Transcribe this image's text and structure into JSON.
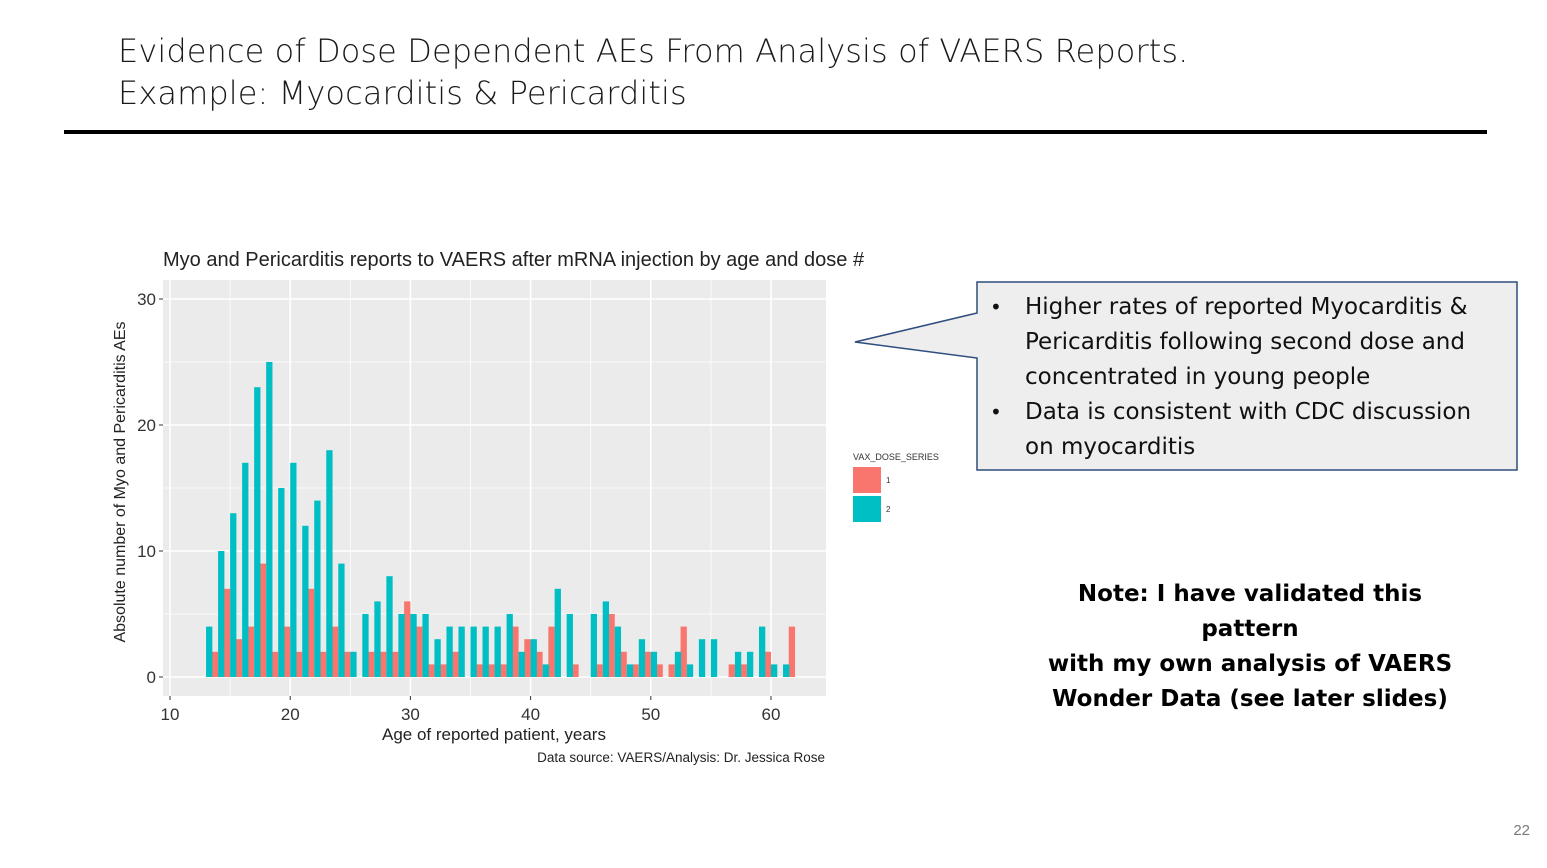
{
  "slide": {
    "title_line1": "Evidence of Dose Dependent AEs From Analysis of VAERS Reports.",
    "title_line2": "Example: Myocarditis & Pericarditis",
    "page_number": "22"
  },
  "callout": {
    "bullets": [
      "Higher rates of reported Myocarditis & Pericarditis following second dose and concentrated in young people",
      "Data is consistent with CDC discussion on myocarditis"
    ],
    "fill": "#eeeeee",
    "border": "#2f4d7e"
  },
  "note": {
    "lines": [
      "Note: I have validated this pattern",
      "with my own analysis of VAERS",
      "Wonder Data (see later slides)"
    ]
  },
  "chart_data": {
    "type": "bar",
    "title": "Myo and Pericarditis reports to VAERS after mRNA injection by age and dose #",
    "xlabel": "Age of reported patient, years",
    "ylabel": "Absolute number of Myo and Pericarditis AEs",
    "caption": "Data source: VAERS/Analysis: Dr. Jessica Rose",
    "xlim": [
      9.5,
      64.5
    ],
    "ylim": [
      -1.5,
      31
    ],
    "xticks": [
      10,
      20,
      30,
      40,
      50,
      60
    ],
    "yticks": [
      0,
      10,
      20,
      30
    ],
    "grid": true,
    "panel_background": "#ebebeb",
    "legend": {
      "title": "VAX_DOSE_SERIES",
      "position": "right"
    },
    "series": [
      {
        "name": "1",
        "color": "#f8766d",
        "points": [
          [
            14,
            2
          ],
          [
            15,
            7
          ],
          [
            16,
            3
          ],
          [
            17,
            4
          ],
          [
            18,
            9
          ],
          [
            19,
            2
          ],
          [
            20,
            4
          ],
          [
            21,
            2
          ],
          [
            22,
            7
          ],
          [
            23,
            2
          ],
          [
            24,
            4
          ],
          [
            25,
            2
          ],
          [
            27,
            2
          ],
          [
            28,
            2
          ],
          [
            29,
            2
          ],
          [
            30,
            6
          ],
          [
            31,
            4
          ],
          [
            32,
            1
          ],
          [
            33,
            1
          ],
          [
            34,
            2
          ],
          [
            36,
            1
          ],
          [
            37,
            1
          ],
          [
            38,
            1
          ],
          [
            39,
            4
          ],
          [
            40,
            3
          ],
          [
            41,
            2
          ],
          [
            42,
            4
          ],
          [
            44,
            1
          ],
          [
            46,
            1
          ],
          [
            47,
            5
          ],
          [
            48,
            2
          ],
          [
            49,
            1
          ],
          [
            50,
            2
          ],
          [
            51,
            1
          ],
          [
            52,
            1
          ],
          [
            53,
            4
          ],
          [
            57,
            1
          ],
          [
            58,
            1
          ],
          [
            60,
            2
          ],
          [
            62,
            4
          ]
        ]
      },
      {
        "name": "2",
        "color": "#00bfc4",
        "points": [
          [
            13,
            4
          ],
          [
            14,
            10
          ],
          [
            15,
            13
          ],
          [
            16,
            17
          ],
          [
            17,
            23
          ],
          [
            18,
            25
          ],
          [
            19,
            15
          ],
          [
            20,
            17
          ],
          [
            21,
            12
          ],
          [
            22,
            14
          ],
          [
            23,
            18
          ],
          [
            24,
            9
          ],
          [
            25,
            2
          ],
          [
            26,
            5
          ],
          [
            27,
            6
          ],
          [
            28,
            8
          ],
          [
            29,
            5
          ],
          [
            30,
            5
          ],
          [
            31,
            5
          ],
          [
            32,
            3
          ],
          [
            33,
            4
          ],
          [
            34,
            4
          ],
          [
            35,
            4
          ],
          [
            36,
            4
          ],
          [
            37,
            4
          ],
          [
            38,
            5
          ],
          [
            39,
            2
          ],
          [
            40,
            3
          ],
          [
            41,
            1
          ],
          [
            42,
            7
          ],
          [
            43,
            5
          ],
          [
            45,
            5
          ],
          [
            46,
            6
          ],
          [
            47,
            4
          ],
          [
            48,
            1
          ],
          [
            49,
            3
          ],
          [
            50,
            2
          ],
          [
            52,
            2
          ],
          [
            53,
            1
          ],
          [
            54,
            3
          ],
          [
            55,
            3
          ],
          [
            57,
            2
          ],
          [
            58,
            2
          ],
          [
            59,
            4
          ],
          [
            60,
            1
          ],
          [
            61,
            1
          ]
        ]
      }
    ]
  }
}
